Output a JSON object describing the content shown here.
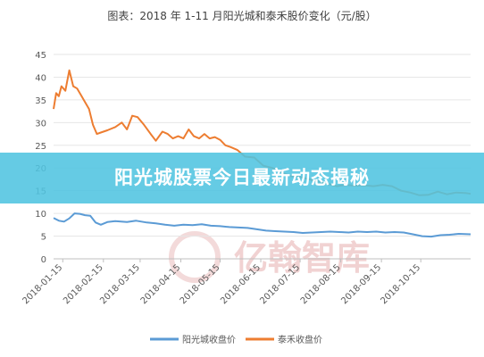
{
  "chart_data": {
    "type": "line",
    "title": "图表：2018 年 1-11 月阳光城和泰禾股价变化（元/股）",
    "ylim": [
      0,
      45
    ],
    "yticks": [
      0,
      5,
      10,
      15,
      20,
      25,
      30,
      35,
      40,
      45
    ],
    "xlim": [
      "2018-01-08",
      "2018-11-22"
    ],
    "xticks": [
      "2018-01-15",
      "2018-02-15",
      "2018-03-15",
      "2018-04-15",
      "2018-05-15",
      "2018-06-15",
      "2018-07-15",
      "2018-08-15",
      "2018-09-15",
      "2018-10-15"
    ],
    "grid": true,
    "legend_position": "bottom",
    "series": [
      {
        "name": "阳光城收盘价",
        "color": "#5b9bd5",
        "points": [
          [
            "2018-01-08",
            9.0
          ],
          [
            "2018-01-12",
            8.4
          ],
          [
            "2018-01-16",
            8.2
          ],
          [
            "2018-01-20",
            8.9
          ],
          [
            "2018-01-24",
            10.0
          ],
          [
            "2018-01-28",
            9.9
          ],
          [
            "2018-02-01",
            9.6
          ],
          [
            "2018-02-05",
            9.5
          ],
          [
            "2018-02-09",
            8.0
          ],
          [
            "2018-02-13",
            7.5
          ],
          [
            "2018-02-18",
            8.1
          ],
          [
            "2018-02-24",
            8.3
          ],
          [
            "2018-03-05",
            8.1
          ],
          [
            "2018-03-12",
            8.4
          ],
          [
            "2018-03-20",
            8.0
          ],
          [
            "2018-03-27",
            7.8
          ],
          [
            "2018-04-03",
            7.5
          ],
          [
            "2018-04-10",
            7.3
          ],
          [
            "2018-04-17",
            7.5
          ],
          [
            "2018-04-24",
            7.4
          ],
          [
            "2018-05-01",
            7.6
          ],
          [
            "2018-05-08",
            7.3
          ],
          [
            "2018-05-15",
            7.2
          ],
          [
            "2018-05-22",
            7.0
          ],
          [
            "2018-05-29",
            6.9
          ],
          [
            "2018-06-05",
            6.8
          ],
          [
            "2018-06-12",
            6.5
          ],
          [
            "2018-06-19",
            6.2
          ],
          [
            "2018-06-26",
            6.1
          ],
          [
            "2018-07-03",
            6.0
          ],
          [
            "2018-07-10",
            5.9
          ],
          [
            "2018-07-17",
            5.7
          ],
          [
            "2018-07-24",
            5.8
          ],
          [
            "2018-07-31",
            5.9
          ],
          [
            "2018-08-07",
            6.0
          ],
          [
            "2018-08-14",
            5.9
          ],
          [
            "2018-08-21",
            5.8
          ],
          [
            "2018-08-28",
            6.0
          ],
          [
            "2018-09-04",
            5.9
          ],
          [
            "2018-09-11",
            6.0
          ],
          [
            "2018-09-18",
            5.8
          ],
          [
            "2018-09-25",
            5.9
          ],
          [
            "2018-10-02",
            5.8
          ],
          [
            "2018-10-09",
            5.4
          ],
          [
            "2018-10-16",
            5.0
          ],
          [
            "2018-10-23",
            4.9
          ],
          [
            "2018-10-30",
            5.2
          ],
          [
            "2018-11-06",
            5.3
          ],
          [
            "2018-11-13",
            5.5
          ],
          [
            "2018-11-22",
            5.4
          ]
        ]
      },
      {
        "name": "泰禾收盘价",
        "color": "#ed7d31",
        "points": [
          [
            "2018-01-08",
            33.0
          ],
          [
            "2018-01-10",
            36.5
          ],
          [
            "2018-01-12",
            35.8
          ],
          [
            "2018-01-14",
            38.0
          ],
          [
            "2018-01-17",
            37.0
          ],
          [
            "2018-01-20",
            41.5
          ],
          [
            "2018-01-23",
            38.0
          ],
          [
            "2018-01-26",
            37.5
          ],
          [
            "2018-01-29",
            36.0
          ],
          [
            "2018-02-01",
            34.5
          ],
          [
            "2018-02-04",
            33.0
          ],
          [
            "2018-02-07",
            29.5
          ],
          [
            "2018-02-10",
            27.5
          ],
          [
            "2018-02-13",
            27.8
          ],
          [
            "2018-02-18",
            28.3
          ],
          [
            "2018-02-24",
            29.0
          ],
          [
            "2018-03-01",
            30.0
          ],
          [
            "2018-03-05",
            28.5
          ],
          [
            "2018-03-09",
            31.5
          ],
          [
            "2018-03-13",
            31.2
          ],
          [
            "2018-03-18",
            29.5
          ],
          [
            "2018-03-23",
            27.5
          ],
          [
            "2018-03-27",
            26.0
          ],
          [
            "2018-04-01",
            28.0
          ],
          [
            "2018-04-05",
            27.5
          ],
          [
            "2018-04-09",
            26.5
          ],
          [
            "2018-04-13",
            27.0
          ],
          [
            "2018-04-17",
            26.5
          ],
          [
            "2018-04-21",
            28.5
          ],
          [
            "2018-04-25",
            27.0
          ],
          [
            "2018-04-29",
            26.5
          ],
          [
            "2018-05-03",
            27.5
          ],
          [
            "2018-05-07",
            26.5
          ],
          [
            "2018-05-11",
            26.8
          ],
          [
            "2018-05-15",
            26.2
          ],
          [
            "2018-05-19",
            25.0
          ],
          [
            "2018-05-23",
            24.6
          ],
          [
            "2018-05-28",
            24.0
          ],
          [
            "2018-06-03",
            22.5
          ],
          [
            "2018-06-10",
            22.3
          ],
          [
            "2018-06-17",
            20.5
          ],
          [
            "2018-06-24",
            20.0
          ],
          [
            "2018-07-01",
            19.0
          ],
          [
            "2018-07-08",
            18.2
          ],
          [
            "2018-07-15",
            18.0
          ],
          [
            "2018-07-22",
            17.5
          ],
          [
            "2018-07-29",
            17.0
          ],
          [
            "2018-08-05",
            16.5
          ],
          [
            "2018-08-12",
            16.0
          ],
          [
            "2018-08-19",
            16.3
          ],
          [
            "2018-08-26",
            16.1
          ],
          [
            "2018-09-02",
            16.2
          ],
          [
            "2018-09-09",
            16.0
          ],
          [
            "2018-09-16",
            16.3
          ],
          [
            "2018-09-23",
            16.0
          ],
          [
            "2018-09-30",
            15.0
          ],
          [
            "2018-10-07",
            14.6
          ],
          [
            "2018-10-14",
            14.0
          ],
          [
            "2018-10-21",
            14.1
          ],
          [
            "2018-10-28",
            14.8
          ],
          [
            "2018-11-04",
            14.2
          ],
          [
            "2018-11-11",
            14.6
          ],
          [
            "2018-11-18",
            14.5
          ],
          [
            "2018-11-22",
            14.3
          ]
        ]
      }
    ]
  },
  "banner": {
    "text": "阳光城股票今日最新动态揭秘",
    "background": "#50c4e0"
  },
  "watermark": {
    "text": "亿翰智库",
    "color": "#f1d2d2"
  }
}
